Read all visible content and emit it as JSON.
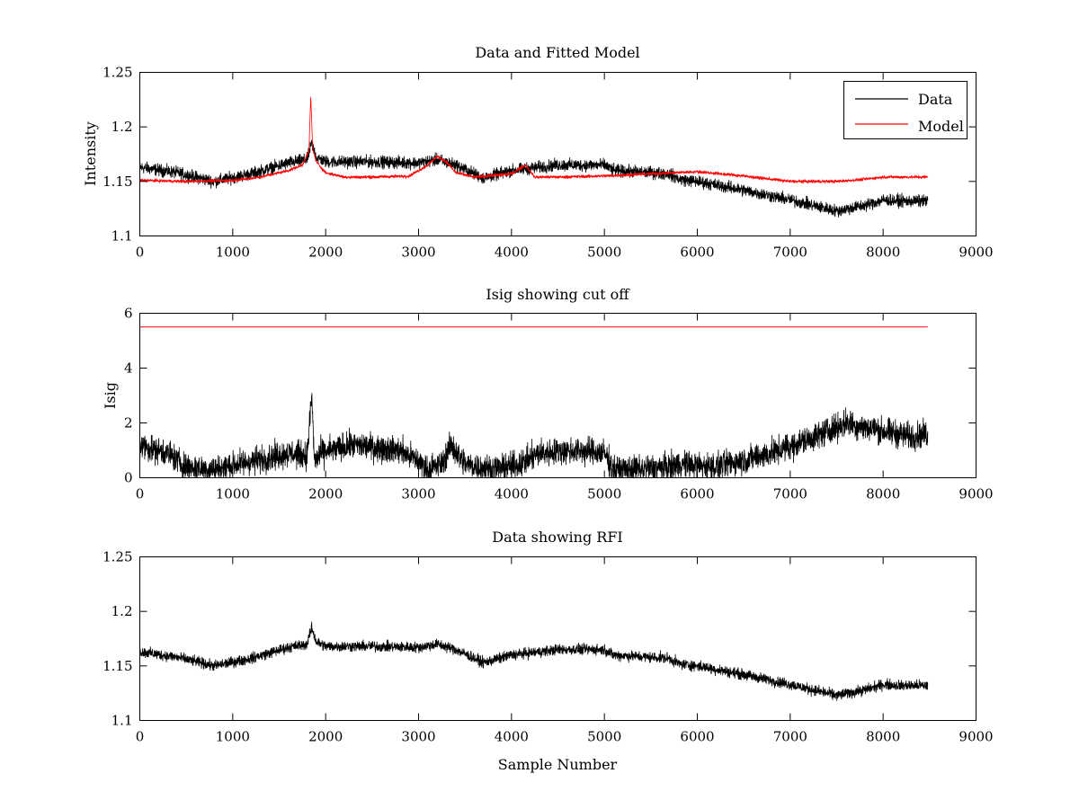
{
  "figure": {
    "x_label": "Sample Number"
  },
  "chart_data": [
    {
      "type": "line",
      "title": "Data and Fitted Model",
      "ylabel": "Intensity",
      "xlim": [
        0,
        9000
      ],
      "ylim": [
        1.1,
        1.25
      ],
      "x_ticks": [
        "0",
        "1000",
        "2000",
        "3000",
        "4000",
        "5000",
        "6000",
        "7000",
        "8000",
        "9000"
      ],
      "y_ticks": [
        "1.1",
        "1.15",
        "1.2",
        "1.25"
      ],
      "legend": {
        "position": "top-right",
        "entries": [
          "Data",
          "Model"
        ]
      },
      "series": [
        {
          "name": "Data",
          "color": "#000000",
          "noise": 0.004,
          "x": [
            0,
            400,
            800,
            1200,
            1600,
            1800,
            1850,
            1900,
            2000,
            2500,
            3000,
            3200,
            3400,
            3600,
            3700,
            4000,
            4500,
            5000,
            5100,
            5500,
            5700,
            5800,
            6000,
            6500,
            7000,
            7500,
            7800,
            8000,
            8200,
            8480
          ],
          "y": [
            1.163,
            1.158,
            1.15,
            1.157,
            1.167,
            1.17,
            1.185,
            1.172,
            1.168,
            1.168,
            1.167,
            1.17,
            1.165,
            1.157,
            1.153,
            1.16,
            1.165,
            1.165,
            1.16,
            1.158,
            1.157,
            1.152,
            1.15,
            1.142,
            1.133,
            1.123,
            1.128,
            1.133,
            1.132,
            1.132
          ]
        },
        {
          "name": "Model",
          "color": "#ff0000",
          "noise": 0.001,
          "x": [
            0,
            500,
            1000,
            1300,
            1600,
            1750,
            1820,
            1840,
            1860,
            1900,
            2000,
            2200,
            2500,
            2900,
            3100,
            3200,
            3300,
            3400,
            3600,
            4000,
            4150,
            4250,
            4500,
            5000,
            5500,
            6000,
            6500,
            7000,
            7500,
            7800,
            8000,
            8480
          ],
          "y": [
            1.151,
            1.15,
            1.151,
            1.154,
            1.16,
            1.165,
            1.178,
            1.228,
            1.18,
            1.168,
            1.158,
            1.154,
            1.154,
            1.155,
            1.165,
            1.173,
            1.168,
            1.158,
            1.154,
            1.157,
            1.165,
            1.154,
            1.154,
            1.155,
            1.157,
            1.159,
            1.155,
            1.15,
            1.15,
            1.152,
            1.154,
            1.154
          ]
        }
      ]
    },
    {
      "type": "line",
      "title": "Isig showing cut off",
      "ylabel": "Isig",
      "xlim": [
        0,
        9000
      ],
      "ylim": [
        0,
        6
      ],
      "x_ticks": [
        "0",
        "1000",
        "2000",
        "3000",
        "4000",
        "5000",
        "6000",
        "7000",
        "8000",
        "9000"
      ],
      "y_ticks": [
        "0",
        "2",
        "4",
        "6"
      ],
      "series": [
        {
          "color": "#ff0000",
          "noise": 0,
          "x": [
            0,
            8480
          ],
          "y": [
            5.5,
            5.5
          ]
        },
        {
          "color": "#000000",
          "noise": 0.35,
          "x": [
            0,
            300,
            500,
            800,
            1200,
            1600,
            1800,
            1850,
            1880,
            1950,
            2300,
            2800,
            3000,
            3100,
            3250,
            3350,
            3500,
            3800,
            4100,
            4300,
            4700,
            5000,
            5100,
            5300,
            5700,
            5800,
            6200,
            6800,
            7200,
            7600,
            8000,
            8300,
            8480
          ],
          "y": [
            1.2,
            0.9,
            0.4,
            0.3,
            0.6,
            0.9,
            0.8,
            3.0,
            0.6,
            0.9,
            1.2,
            1.0,
            0.6,
            0.3,
            0.5,
            1.2,
            0.5,
            0.3,
            0.5,
            0.9,
            1.0,
            0.9,
            0.3,
            0.3,
            0.4,
            0.5,
            0.4,
            0.9,
            1.4,
            2.0,
            1.7,
            1.5,
            1.6
          ]
        }
      ]
    },
    {
      "type": "line",
      "title": "Data showing RFI",
      "ylabel": "",
      "xlim": [
        0,
        9000
      ],
      "ylim": [
        1.1,
        1.25
      ],
      "x_ticks": [
        "0",
        "1000",
        "2000",
        "3000",
        "4000",
        "5000",
        "6000",
        "7000",
        "8000",
        "9000"
      ],
      "y_ticks": [
        "1.1",
        "1.15",
        "1.2",
        "1.25"
      ],
      "series": [
        {
          "color": "#000000",
          "noise": 0.0035,
          "x": [
            0,
            400,
            800,
            1200,
            1600,
            1800,
            1850,
            1900,
            2000,
            2500,
            3000,
            3200,
            3400,
            3600,
            3700,
            4000,
            4500,
            5000,
            5100,
            5500,
            5700,
            5800,
            6000,
            6500,
            7000,
            7500,
            7800,
            8000,
            8200,
            8480
          ],
          "y": [
            1.163,
            1.158,
            1.15,
            1.157,
            1.167,
            1.17,
            1.185,
            1.172,
            1.168,
            1.168,
            1.167,
            1.17,
            1.165,
            1.157,
            1.153,
            1.16,
            1.165,
            1.165,
            1.16,
            1.158,
            1.157,
            1.152,
            1.15,
            1.142,
            1.133,
            1.123,
            1.128,
            1.133,
            1.132,
            1.132
          ]
        }
      ]
    }
  ]
}
